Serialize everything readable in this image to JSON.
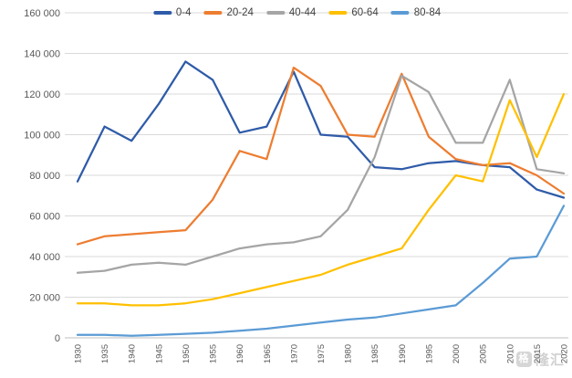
{
  "chart_data": {
    "type": "line",
    "title": "",
    "xlabel": "",
    "ylabel": "",
    "grid": true,
    "legend_position": "top-center",
    "ylim": [
      0,
      160000
    ],
    "ytick_step": 20000,
    "ytick_labels": [
      "0",
      "20 000",
      "40 000",
      "60 000",
      "80 000",
      "100 000",
      "120 000",
      "140 000",
      "160 000"
    ],
    "x": [
      "1930",
      "1935",
      "1940",
      "1945",
      "1950",
      "1955",
      "1960",
      "1965",
      "1970",
      "1975",
      "1980",
      "1985",
      "1990",
      "1995",
      "2000",
      "2005",
      "2010",
      "2015",
      "2020"
    ],
    "series": [
      {
        "name": "0-4",
        "color": "#2F5BA8",
        "values": [
          77000,
          104000,
          97000,
          115000,
          136000,
          127000,
          101000,
          104000,
          131000,
          100000,
          99000,
          84000,
          83000,
          86000,
          87000,
          85000,
          84000,
          73000,
          69000
        ]
      },
      {
        "name": "20-24",
        "color": "#ED7D31",
        "values": [
          46000,
          50000,
          51000,
          52000,
          53000,
          68000,
          92000,
          88000,
          133000,
          124000,
          100000,
          99000,
          130000,
          99000,
          88000,
          85000,
          86000,
          80000,
          71000
        ]
      },
      {
        "name": "40-44",
        "color": "#A5A5A5",
        "values": [
          32000,
          33000,
          36000,
          37000,
          36000,
          40000,
          44000,
          46000,
          47000,
          50000,
          63000,
          89000,
          129000,
          121000,
          96000,
          96000,
          127000,
          83000,
          81000
        ]
      },
      {
        "name": "60-64",
        "color": "#FFC000",
        "values": [
          17000,
          17000,
          16000,
          16000,
          17000,
          19000,
          22000,
          25000,
          28000,
          31000,
          36000,
          40000,
          44000,
          63000,
          80000,
          77000,
          117000,
          89000,
          120000
        ]
      },
      {
        "name": "80-84",
        "color": "#5B9BD5",
        "values": [
          1500,
          1500,
          1000,
          1500,
          2000,
          2500,
          3500,
          4500,
          6000,
          7500,
          9000,
          10000,
          12000,
          14000,
          16000,
          27000,
          39000,
          40000,
          65000
        ]
      }
    ]
  },
  "watermark": {
    "badge": "格",
    "text": "隆汇"
  }
}
